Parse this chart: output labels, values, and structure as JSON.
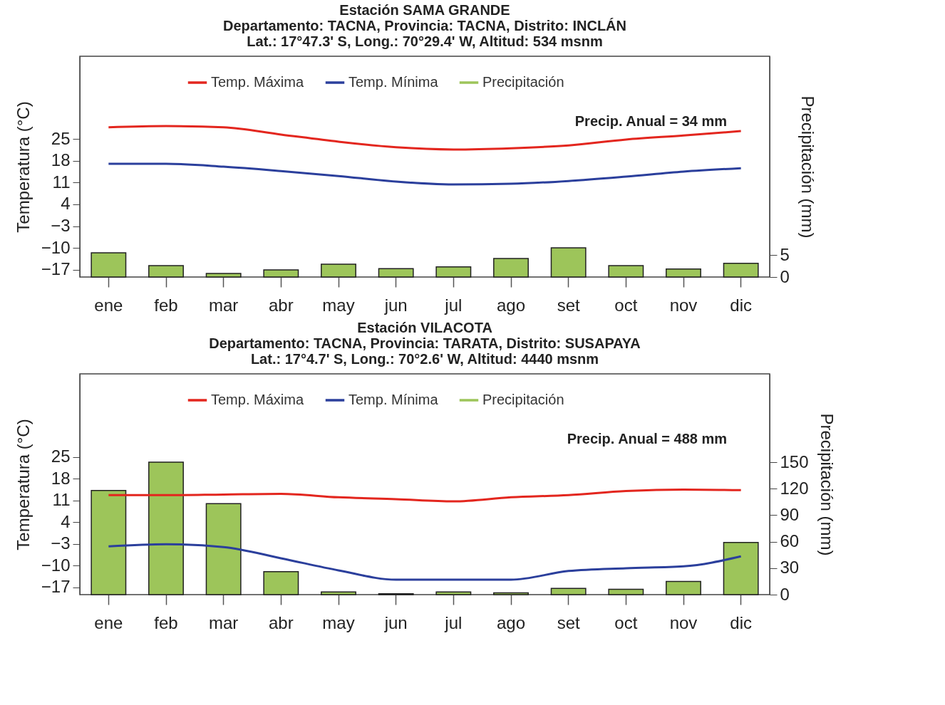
{
  "chart_data": [
    {
      "type": "bar",
      "title": "Estación SAMA GRANDE",
      "subtitle": "Departamento: TACNA, Provincia: TACNA, Distrito: INCLÁN\nLat.: 17°47.3' S, Long.: 70°29.4' W, Altitud: 534 msnm",
      "ylabel": "Temperatura (°C)",
      "y2label": "Precipitación (mm)",
      "annotations": [
        "Precip. Anual = 34 mm"
      ],
      "categories": [
        "ene",
        "feb",
        "mar",
        "abr",
        "may",
        "jun",
        "jul",
        "ago",
        "set",
        "oct",
        "nov",
        "dic"
      ],
      "series": [
        {
          "name": "Temp. Máxima",
          "type": "line",
          "color": "#e3261e",
          "values": [
            28.7,
            29.1,
            28.7,
            26.4,
            24.1,
            22.3,
            21.6,
            22.0,
            22.9,
            24.8,
            26.1,
            27.5
          ]
        },
        {
          "name": "Temp. Mínima",
          "type": "line",
          "color": "#2b3f9c",
          "values": [
            17.0,
            17.0,
            16.1,
            14.7,
            13.1,
            11.3,
            10.4,
            10.6,
            11.5,
            12.9,
            14.5,
            15.6
          ]
        },
        {
          "name": "Precipitación",
          "type": "bar",
          "axis": "y2",
          "color": "#9dc55a",
          "values": [
            5.5,
            2.6,
            0.8,
            1.6,
            2.9,
            1.9,
            2.3,
            4.2,
            6.6,
            2.6,
            1.8,
            3.1
          ]
        }
      ],
      "ylim": [
        -19.3,
        51.5
      ],
      "yticks": [
        -17,
        -10,
        -3,
        4,
        11,
        18,
        25
      ],
      "y2lim": [
        0,
        50
      ],
      "y2ticks": [
        0,
        5
      ],
      "legend": "top",
      "grid": false
    },
    {
      "type": "bar",
      "title": "Estación VILACOTA",
      "subtitle": "Departamento: TACNA, Provincia: TARATA, Distrito: SUSAPAYA\nLat.: 17°4.7' S, Long.: 70°2.6' W, Altitud: 4440 msnm",
      "ylabel": "Temperatura (°C)",
      "y2label": "Precipitación (mm)",
      "annotations": [
        "Precip. Anual = 488 mm"
      ],
      "categories": [
        "ene",
        "feb",
        "mar",
        "abr",
        "may",
        "jun",
        "jul",
        "ago",
        "set",
        "oct",
        "nov",
        "dic"
      ],
      "series": [
        {
          "name": "Temp. Máxima",
          "type": "line",
          "color": "#e3261e",
          "values": [
            12.7,
            12.7,
            12.9,
            13.1,
            12.0,
            11.4,
            10.7,
            12.0,
            12.7,
            14.0,
            14.5,
            14.3
          ]
        },
        {
          "name": "Temp. Mínima",
          "type": "line",
          "color": "#2b3f9c",
          "values": [
            -3.8,
            -3.1,
            -4.0,
            -7.6,
            -11.5,
            -14.5,
            -14.5,
            -14.5,
            -11.7,
            -10.8,
            -10.2,
            -7.0
          ]
        },
        {
          "name": "Precipitación",
          "type": "bar",
          "axis": "y2",
          "color": "#9dc55a",
          "values": [
            118,
            150,
            103,
            26,
            3,
            1,
            3,
            2,
            7,
            6,
            15,
            59
          ]
        }
      ],
      "ylim": [
        -19.3,
        51.7
      ],
      "yticks": [
        -17,
        -10,
        -3,
        4,
        11,
        18,
        25
      ],
      "y2lim": [
        0,
        250
      ],
      "y2ticks": [
        0,
        30,
        60,
        90,
        120,
        150
      ],
      "legend": "top",
      "grid": false
    }
  ]
}
